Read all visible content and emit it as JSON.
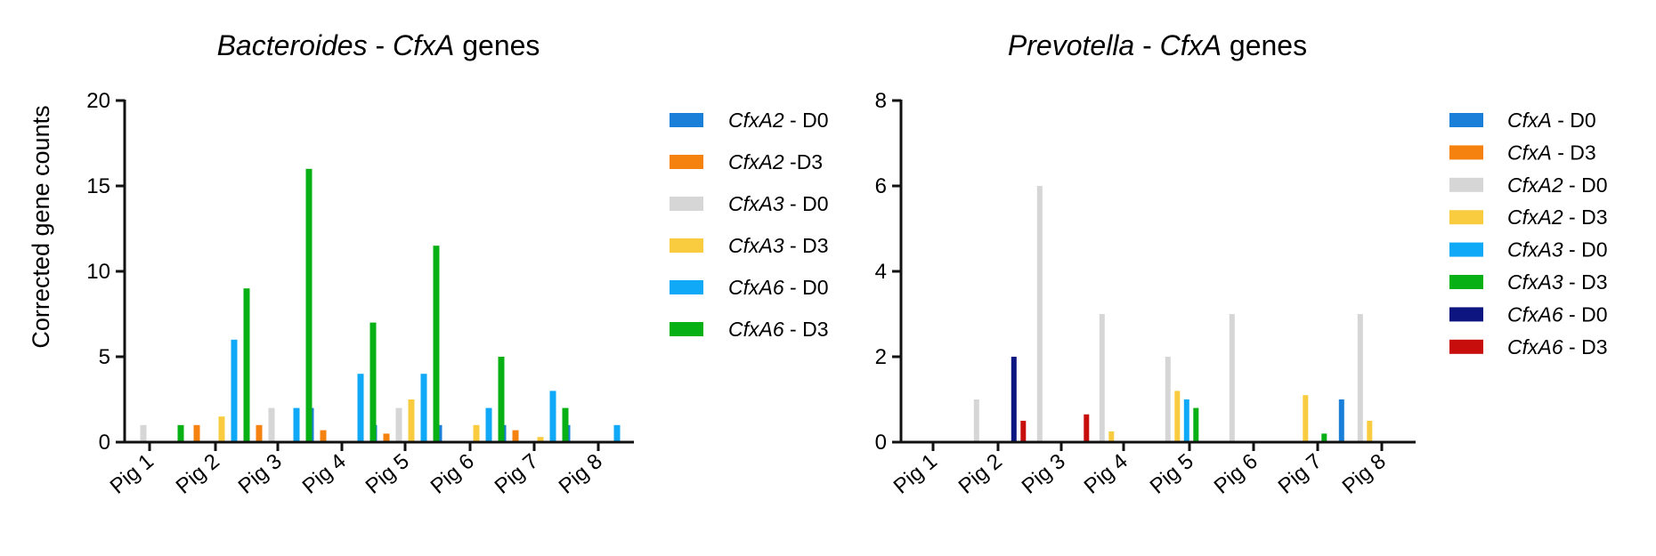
{
  "chart_data": [
    {
      "type": "bar",
      "title": {
        "genus": "Bacteroides",
        "sep": " - ",
        "gene": "CfxA",
        "rest": " genes"
      },
      "ylabel": "Corrected gene counts",
      "xlabel": "",
      "ylim": [
        0,
        20
      ],
      "yticks": [
        "0",
        "5",
        "10",
        "15",
        "20"
      ],
      "categories": [
        "Pig 1",
        "Pig 2",
        "Pig 3",
        "Pig 4",
        "Pig 5",
        "Pig 6",
        "Pig 7",
        "Pig 8"
      ],
      "series": [
        {
          "gene": "CfxA2",
          "suffix": " - D0",
          "color": "#1a7fd8",
          "values": [
            0,
            0,
            4,
            2,
            1,
            1,
            1,
            1
          ]
        },
        {
          "gene": "CfxA2",
          "suffix": " -D3",
          "color": "#f5820f",
          "values": [
            0,
            1,
            1,
            0.7,
            0.5,
            0,
            0.7,
            0
          ]
        },
        {
          "gene": "CfxA3",
          "suffix": " - D0",
          "color": "#d6d6d6",
          "values": [
            1,
            0,
            2,
            0,
            2,
            0,
            0,
            0
          ]
        },
        {
          "gene": "CfxA3",
          "suffix": " - D3",
          "color": "#f9cc40",
          "values": [
            0,
            1.5,
            0,
            0,
            2.5,
            1,
            0.3,
            0
          ]
        },
        {
          "gene": "CfxA6",
          "suffix": " - D0",
          "color": "#0fa9f7",
          "values": [
            0,
            6,
            2,
            4,
            4,
            2,
            3,
            1
          ]
        },
        {
          "gene": "CfxA6",
          "suffix": " - D3",
          "color": "#07b014",
          "values": [
            1,
            9,
            16,
            7,
            11.5,
            5,
            2,
            0
          ]
        }
      ]
    },
    {
      "type": "bar",
      "title": {
        "genus": "Prevotella",
        "sep": " - ",
        "gene": "CfxA",
        "rest": " genes"
      },
      "ylabel": "",
      "xlabel": "",
      "ylim": [
        0,
        8
      ],
      "yticks": [
        "0",
        "2",
        "4",
        "6",
        "8"
      ],
      "categories": [
        "Pig 1",
        "Pig 2",
        "Pig 3",
        "Pig 4",
        "Pig 5",
        "Pig 6",
        "Pig 7",
        "Pig 8"
      ],
      "series": [
        {
          "gene": "CfxA",
          "suffix": " - D0",
          "color": "#1a7fd8",
          "values": [
            0,
            0,
            0,
            0,
            0,
            0,
            0,
            1
          ]
        },
        {
          "gene": "CfxA",
          "suffix": " - D3",
          "color": "#f5820f",
          "values": [
            0,
            0,
            0,
            0,
            0,
            0,
            0,
            0
          ]
        },
        {
          "gene": "CfxA2",
          "suffix": " - D0",
          "color": "#d6d6d6",
          "values": [
            0,
            1,
            6,
            3,
            2,
            3,
            0,
            3
          ]
        },
        {
          "gene": "CfxA2",
          "suffix": " - D3",
          "color": "#f9cc40",
          "values": [
            0,
            0,
            0,
            0.25,
            1.2,
            0,
            1.1,
            0.5
          ]
        },
        {
          "gene": "CfxA3",
          "suffix": " - D0",
          "color": "#0fa9f7",
          "values": [
            0,
            0,
            0,
            0,
            1,
            0,
            0,
            0
          ]
        },
        {
          "gene": "CfxA3",
          "suffix": " - D3",
          "color": "#07b014",
          "values": [
            0,
            0,
            0,
            0,
            0.8,
            0,
            0.2,
            0
          ]
        },
        {
          "gene": "CfxA6",
          "suffix": " - D0",
          "color": "#0d1580",
          "values": [
            0,
            2,
            0,
            0,
            0,
            0,
            0,
            0
          ]
        },
        {
          "gene": "CfxA6",
          "suffix": " - D3",
          "color": "#c80d0d",
          "values": [
            0,
            0.5,
            0.65,
            0,
            0,
            0,
            0,
            0
          ]
        }
      ]
    }
  ]
}
